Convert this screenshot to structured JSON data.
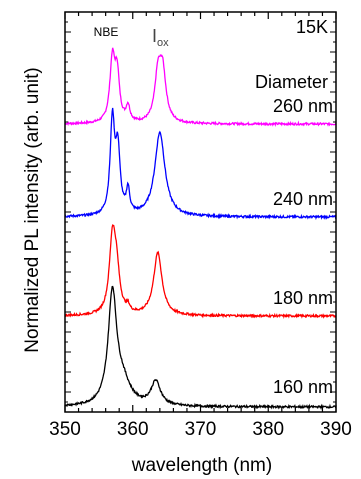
{
  "chart_data": {
    "type": "line",
    "xlabel": "wavelength (nm)",
    "ylabel": "Normalized PL intensity (arb. unit)",
    "xlim": [
      350,
      390
    ],
    "x_ticks": [
      "350",
      "360",
      "370",
      "380",
      "390"
    ],
    "y_ticks_shown": false,
    "temperature_label": "15K",
    "legend_heading": "Diameter",
    "peak_labels": {
      "nbe": "NBE",
      "iox_main": "I",
      "iox_sub": "ox"
    },
    "series": [
      {
        "name": "260 nm",
        "color": "#ff00ff",
        "peaks": [
          {
            "center": 357.0,
            "width": 0.45,
            "height": 0.52
          },
          {
            "center": 357.7,
            "width": 0.4,
            "height": 0.38
          },
          {
            "center": 359.3,
            "width": 0.35,
            "height": 0.13
          },
          {
            "center": 363.7,
            "width": 0.55,
            "height": 0.35
          },
          {
            "center": 364.4,
            "width": 0.6,
            "height": 0.42
          }
        ]
      },
      {
        "name": "240 nm",
        "color": "#0000ff",
        "peaks": [
          {
            "center": 357.0,
            "width": 0.4,
            "height": 0.78
          },
          {
            "center": 357.8,
            "width": 0.4,
            "height": 0.52
          },
          {
            "center": 359.3,
            "width": 0.3,
            "height": 0.2
          },
          {
            "center": 364.0,
            "width": 0.9,
            "height": 0.7
          }
        ]
      },
      {
        "name": "180 nm",
        "color": "#ff0000",
        "peaks": [
          {
            "center": 357.0,
            "width": 0.55,
            "height": 0.6
          },
          {
            "center": 357.6,
            "width": 0.55,
            "height": 0.32
          },
          {
            "center": 359.3,
            "width": 0.3,
            "height": 0.05
          },
          {
            "center": 363.7,
            "width": 0.75,
            "height": 0.52
          }
        ]
      },
      {
        "name": "160 nm",
        "color": "#000000",
        "peaks": [
          {
            "center": 357.0,
            "width": 0.75,
            "height": 0.92
          },
          {
            "center": 358.5,
            "width": 1.4,
            "height": 0.18
          },
          {
            "center": 363.4,
            "width": 0.85,
            "height": 0.2
          }
        ]
      }
    ]
  }
}
